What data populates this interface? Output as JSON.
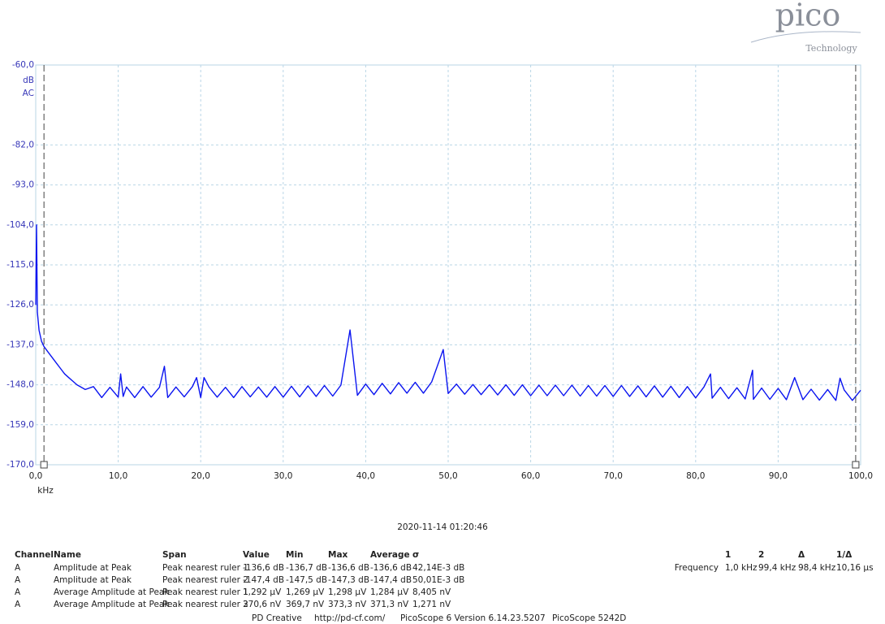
{
  "logo": {
    "name": "pico",
    "sub": "Technology"
  },
  "chart_data": {
    "type": "line",
    "y_unit": "dB",
    "y_coupling": "AC",
    "x_unit": "kHz",
    "xlim": [
      0,
      100
    ],
    "ylim": [
      -170,
      -60
    ],
    "xticks": [
      {
        "value": 0,
        "label": "0,0"
      },
      {
        "value": 10,
        "label": "10,0"
      },
      {
        "value": 20,
        "label": "20,0"
      },
      {
        "value": 30,
        "label": "30,0"
      },
      {
        "value": 40,
        "label": "40,0"
      },
      {
        "value": 50,
        "label": "50,0"
      },
      {
        "value": 60,
        "label": "60,0"
      },
      {
        "value": 70,
        "label": "70,0"
      },
      {
        "value": 80,
        "label": "80,0"
      },
      {
        "value": 90,
        "label": "90,0"
      },
      {
        "value": 100,
        "label": "100,0"
      }
    ],
    "yticks": [
      {
        "value": -60,
        "label": "-60,0"
      },
      {
        "value": -82,
        "label": "-82,0"
      },
      {
        "value": -93,
        "label": "-93,0"
      },
      {
        "value": -104,
        "label": "-104,0"
      },
      {
        "value": -115,
        "label": "-115,0"
      },
      {
        "value": -126,
        "label": "-126,0"
      },
      {
        "value": -137,
        "label": "-137,0"
      },
      {
        "value": -148,
        "label": "-148,0"
      },
      {
        "value": -159,
        "label": "-159,0"
      },
      {
        "value": -170,
        "label": "-170,0"
      }
    ],
    "grid": true,
    "rulers": [
      1.0,
      99.4
    ],
    "series": [
      {
        "color": "#0a14f0",
        "x": [
          0,
          0.1,
          0.2,
          0.4,
          0.7,
          1,
          1.5,
          2,
          2.5,
          3,
          3.5,
          4,
          4.5,
          5,
          6,
          7,
          8,
          9,
          10,
          10.3,
          10.6,
          11,
          12,
          13,
          14,
          15,
          15.6,
          16,
          17,
          18,
          19,
          19.5,
          20,
          20.4,
          21,
          22,
          23,
          24,
          25,
          26,
          27,
          28,
          29,
          30,
          31,
          32,
          33,
          34,
          35,
          36,
          37,
          38.1,
          39,
          40,
          41,
          42,
          43,
          44,
          45,
          46,
          47,
          48,
          49.4,
          50,
          51,
          52,
          53,
          54,
          55,
          56,
          57,
          58,
          59,
          60,
          61,
          62,
          63,
          64,
          65,
          66,
          67,
          68,
          69,
          70,
          71,
          72,
          73,
          74,
          75,
          76,
          77,
          78,
          79,
          80,
          81,
          81.8,
          82,
          83,
          84,
          85,
          86,
          86.9,
          87,
          88,
          89,
          90,
          91,
          92,
          93,
          94,
          95,
          96,
          97,
          97.5,
          98,
          99,
          100
        ],
        "values": [
          -126,
          -104,
          -128,
          -133,
          -136,
          -137.5,
          -139,
          -140.5,
          -142,
          -143.5,
          -145,
          -146,
          -147,
          -148,
          -149.3,
          -148.5,
          -151.5,
          -148.7,
          -151.4,
          -145,
          -151.2,
          -148.6,
          -151.5,
          -148.5,
          -151.4,
          -148.7,
          -142.9,
          -151.5,
          -148.6,
          -151.3,
          -148.5,
          -146,
          -151.5,
          -146,
          -148.6,
          -151.4,
          -148.7,
          -151.5,
          -148.5,
          -151.3,
          -148.6,
          -151.4,
          -148.5,
          -151.4,
          -148.4,
          -151.3,
          -148.3,
          -151.2,
          -148.2,
          -151.1,
          -148.1,
          -132.9,
          -150.9,
          -147.8,
          -150.7,
          -147.6,
          -150.5,
          -147.4,
          -150.3,
          -147.3,
          -150.3,
          -147.2,
          -138.3,
          -150.4,
          -147.8,
          -150.6,
          -147.9,
          -150.7,
          -148.0,
          -150.8,
          -148.0,
          -150.9,
          -148.0,
          -151.0,
          -148.1,
          -151.0,
          -148.1,
          -151.0,
          -148.1,
          -151.1,
          -148.2,
          -151.1,
          -148.2,
          -151.2,
          -148.2,
          -151.2,
          -148.3,
          -151.3,
          -148.3,
          -151.4,
          -148.4,
          -151.5,
          -148.5,
          -151.6,
          -148.6,
          -145,
          -151.7,
          -148.7,
          -151.8,
          -148.8,
          -151.9,
          -144,
          -152.0,
          -148.9,
          -152.0,
          -149.0,
          -152.1,
          -146,
          -152.1,
          -149.2,
          -152.2,
          -149.3,
          -152.3,
          -146.2,
          -149.4,
          -152.3,
          -149.5
        ]
      }
    ]
  },
  "timestamp": "2020-11-14 01:20:46",
  "measurements": {
    "columns": [
      "Channel",
      "Name",
      "Span",
      "Value",
      "Min",
      "Max",
      "Average",
      "σ"
    ],
    "rows": [
      [
        "A",
        "Amplitude at Peak",
        "Peak nearest ruler 1",
        "-136,6 dB",
        "-136,7 dB",
        "-136,6 dB",
        "-136,6 dB",
        "42,14E-3 dB"
      ],
      [
        "A",
        "Amplitude at Peak",
        "Peak nearest ruler 2",
        "-147,4 dB",
        "-147,5 dB",
        "-147,3 dB",
        "-147,4 dB",
        "50,01E-3 dB"
      ],
      [
        "A",
        "Average Amplitude at Peak",
        "Peak nearest ruler 1",
        "1,292 µV",
        "1,269 µV",
        "1,298 µV",
        "1,284 µV",
        "8,405 nV"
      ],
      [
        "A",
        "Average Amplitude at Peak",
        "Peak nearest ruler 2",
        "370,6 nV",
        "369,7 nV",
        "373,3 nV",
        "371,3 nV",
        "1,271 nV"
      ]
    ]
  },
  "ruler_table": {
    "columns": [
      "1",
      "2",
      "Δ",
      "1/Δ"
    ],
    "row_label": "Frequency",
    "values": [
      "1,0 kHz",
      "99,4 kHz",
      "98,4 kHz",
      "10,16 µs"
    ]
  },
  "footer": [
    "PD Creative",
    "http://pd-cf.com/",
    "PicoScope 6 Version 6.14.23.5207",
    "PicoScope 5242D"
  ]
}
